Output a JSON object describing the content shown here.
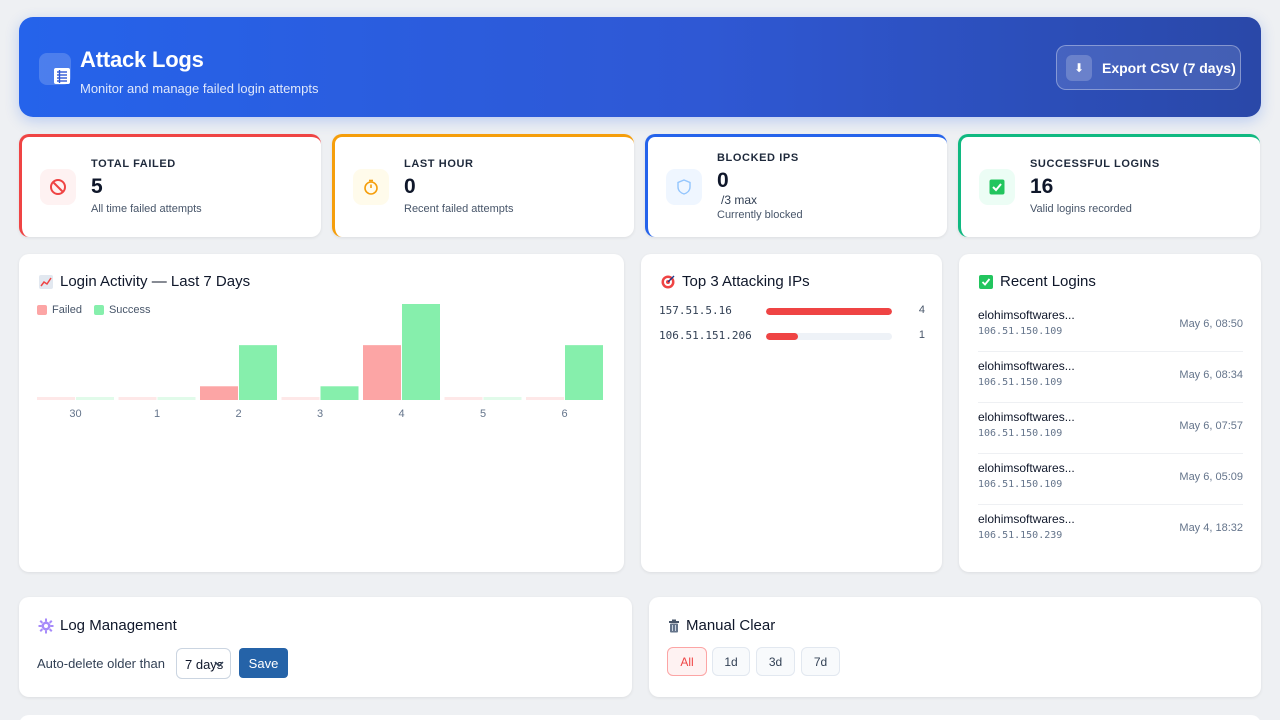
{
  "header": {
    "title": "Attack Logs",
    "subtitle": "Monitor and manage failed login attempts",
    "export_label": "Export CSV (7 days)",
    "icon": "list-icon",
    "export_icon": "download-icon"
  },
  "stats": [
    {
      "label": "TOTAL FAILED",
      "value": "5",
      "sub": "All time failed attempts",
      "color": "#ef4444",
      "icon": "ban-icon"
    },
    {
      "label": "LAST HOUR",
      "value": "0",
      "sub": "Recent failed attempts",
      "color": "#f59e0b",
      "icon": "stopwatch-icon"
    },
    {
      "label": "BLOCKED IPS",
      "value": "0",
      "max": "/3 max",
      "sub": "Currently blocked",
      "color": "#2563eb",
      "icon": "shield-icon"
    },
    {
      "label": "SUCCESSFUL LOGINS",
      "value": "16",
      "sub": "Valid logins recorded",
      "color": "#10b981",
      "icon": "check-box-icon"
    }
  ],
  "activity": {
    "title": "Login Activity — Last 7 Days",
    "legend_failed": "Failed",
    "legend_success": "Success",
    "colors": {
      "failed": "#fca5a5",
      "success": "#86efac"
    }
  },
  "chart_data": {
    "type": "bar",
    "title": "Login Activity — Last 7 Days",
    "categories": [
      "30",
      "1",
      "2",
      "3",
      "4",
      "5",
      "6"
    ],
    "series": [
      {
        "name": "Failed",
        "values": [
          0,
          0,
          1,
          0,
          4,
          0,
          0
        ]
      },
      {
        "name": "Success",
        "values": [
          0,
          0,
          4,
          1,
          7,
          0,
          4
        ]
      }
    ],
    "ylim": [
      0,
      7
    ],
    "grid": false,
    "legend": "top-left"
  },
  "top_ips": {
    "title": "Top 3 Attacking IPs",
    "rows": [
      {
        "ip": "157.51.5.16",
        "count": "4",
        "ratio": 1.0
      },
      {
        "ip": "106.51.151.206",
        "count": "1",
        "ratio": 0.25
      }
    ]
  },
  "recent": {
    "title": "Recent Logins",
    "rows": [
      {
        "user": "elohimsoftwares...",
        "ip": "106.51.150.109",
        "time": "May 6, 08:50"
      },
      {
        "user": "elohimsoftwares...",
        "ip": "106.51.150.109",
        "time": "May 6, 08:34"
      },
      {
        "user": "elohimsoftwares...",
        "ip": "106.51.150.109",
        "time": "May 6, 07:57"
      },
      {
        "user": "elohimsoftwares...",
        "ip": "106.51.150.109",
        "time": "May 6, 05:09"
      },
      {
        "user": "elohimsoftwares...",
        "ip": "106.51.150.239",
        "time": "May 4, 18:32"
      }
    ]
  },
  "log_mgmt": {
    "title": "Log Management",
    "auto_label": "Auto-delete older than",
    "selected": "7 days",
    "save_label": "Save"
  },
  "manual": {
    "title": "Manual Clear",
    "options": [
      "All",
      "1d",
      "3d",
      "7d"
    ],
    "active": "All"
  }
}
